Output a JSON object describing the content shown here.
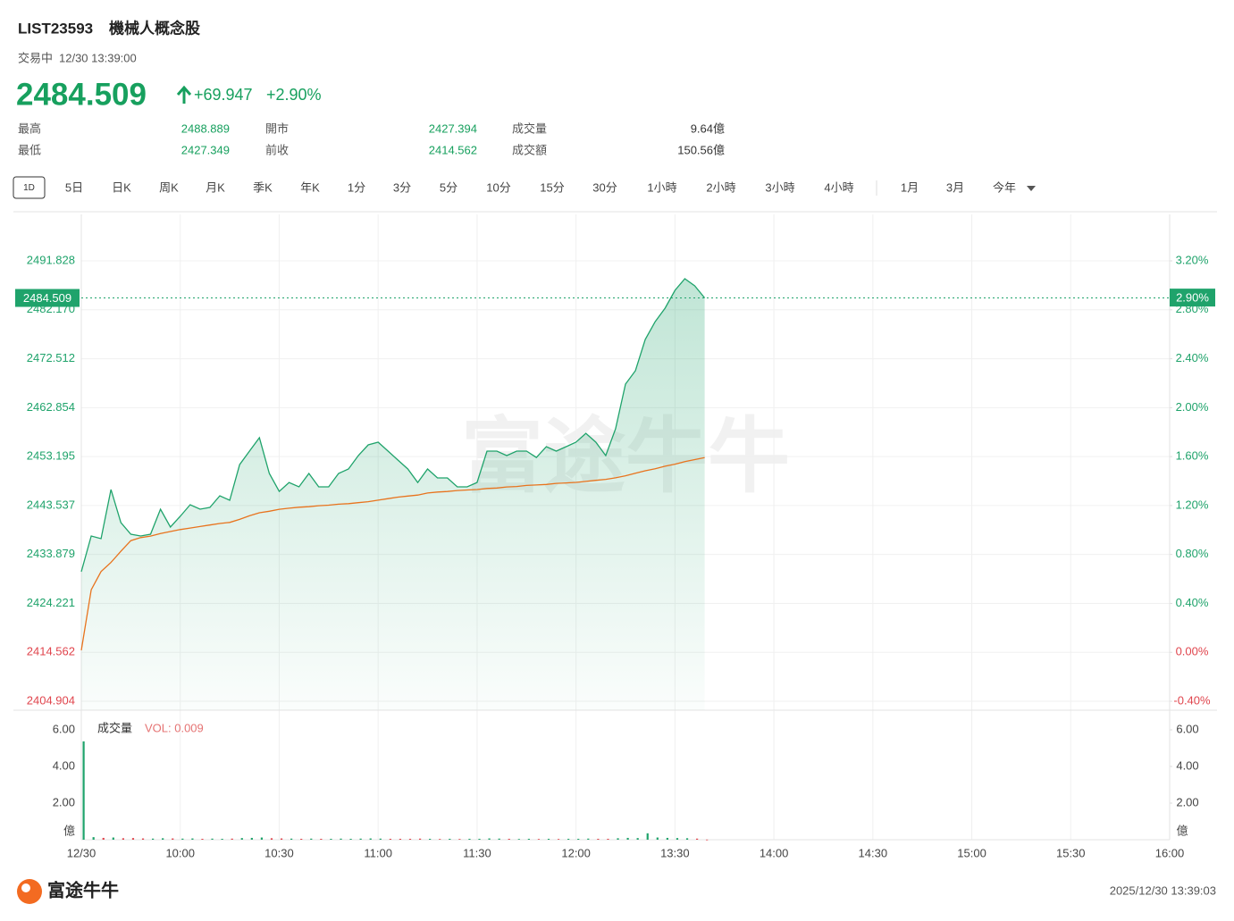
{
  "header": {
    "symbol": "LIST23593",
    "name": "機械人概念股",
    "status": "交易中",
    "time": "12/30 13:39:00",
    "price": "2484.509",
    "change": "+69.947",
    "change_pct": "+2.90%"
  },
  "stats": [
    [
      {
        "label": "最高",
        "value": "2488.889"
      },
      {
        "label": "開市",
        "value": "2427.394"
      },
      {
        "label": "成交量",
        "value": "9.64億"
      }
    ],
    [
      {
        "label": "最低",
        "value": "2427.349"
      },
      {
        "label": "前收",
        "value": "2414.562"
      },
      {
        "label": "成交額",
        "value": "150.56億"
      }
    ]
  ],
  "tabs": {
    "icon": "1D",
    "items": [
      "5日",
      "日K",
      "周K",
      "月K",
      "季K",
      "年K",
      "1分",
      "3分",
      "5分",
      "10分",
      "15分",
      "30分",
      "1小時",
      "2小時",
      "3小時",
      "4小時"
    ],
    "more": [
      "1月",
      "3月",
      "今年"
    ]
  },
  "chart_data": [
    {
      "type": "line",
      "watermark": "富途牛牛",
      "grid": true,
      "x": [
        "09:30",
        "09:33",
        "09:36",
        "09:39",
        "09:42",
        "09:45",
        "09:48",
        "09:51",
        "09:54",
        "09:57",
        "10:00",
        "10:03",
        "10:06",
        "10:09",
        "10:12",
        "10:15",
        "10:18",
        "10:21",
        "10:24",
        "10:27",
        "10:30",
        "10:33",
        "10:36",
        "10:39",
        "10:42",
        "10:45",
        "10:48",
        "10:51",
        "10:54",
        "10:57",
        "11:00",
        "11:03",
        "11:06",
        "11:09",
        "11:12",
        "11:15",
        "11:18",
        "11:21",
        "11:24",
        "11:27",
        "11:30",
        "11:33",
        "11:36",
        "11:39",
        "11:42",
        "11:45",
        "11:48",
        "11:51",
        "11:54",
        "11:57",
        "12:00",
        "13:03",
        "13:06",
        "13:09",
        "13:12",
        "13:15",
        "13:18",
        "13:21",
        "13:24",
        "13:27",
        "13:30",
        "13:33",
        "13:36",
        "13:39"
      ],
      "series": [
        {
          "color": "#1fa36b",
          "values": [
            2430.47,
            2437.52,
            2436.99,
            2446.69,
            2440.16,
            2437.87,
            2437.52,
            2437.87,
            2442.81,
            2439.28,
            2441.4,
            2443.69,
            2442.81,
            2443.16,
            2445.45,
            2444.57,
            2451.62,
            2454.27,
            2456.92,
            2449.86,
            2446.33,
            2448.09,
            2447.22,
            2449.86,
            2447.22,
            2447.22,
            2449.86,
            2450.74,
            2453.39,
            2455.5,
            2456.03,
            2454.27,
            2452.51,
            2450.74,
            2448.09,
            2450.74,
            2448.98,
            2448.98,
            2447.22,
            2447.22,
            2448.09,
            2454.27,
            2454.27,
            2453.39,
            2454.27,
            2454.27,
            2453.03,
            2455.15,
            2454.27,
            2455.15,
            2456.03,
            2457.79,
            2456.03,
            2453.39,
            2458.68,
            2467.49,
            2470.14,
            2476.31,
            2479.83,
            2482.48,
            2486.01,
            2488.3,
            2486.89,
            2484.509
          ]
        },
        {
          "color": "#e8731d",
          "values": [
            2414.95,
            2426.9,
            2430.5,
            2432.3,
            2434.5,
            2436.6,
            2437.2,
            2437.5,
            2438.0,
            2438.4,
            2438.8,
            2439.1,
            2439.4,
            2439.7,
            2440.0,
            2440.2,
            2440.8,
            2441.5,
            2442.1,
            2442.4,
            2442.8,
            2443.0,
            2443.2,
            2443.3,
            2443.5,
            2443.6,
            2443.8,
            2443.9,
            2444.1,
            2444.3,
            2444.6,
            2444.9,
            2445.2,
            2445.4,
            2445.6,
            2446.0,
            2446.2,
            2446.3,
            2446.5,
            2446.6,
            2446.7,
            2446.9,
            2447.0,
            2447.2,
            2447.3,
            2447.5,
            2447.6,
            2447.7,
            2447.9,
            2448.0,
            2448.1,
            2448.3,
            2448.5,
            2448.7,
            2449.0,
            2449.4,
            2449.9,
            2450.4,
            2450.8,
            2451.3,
            2451.7,
            2452.2,
            2452.6,
            2453.0
          ]
        }
      ],
      "xlim": [
        "09:30",
        "16:00"
      ],
      "x_breaks": [
        [
          "12:00",
          "13:00"
        ]
      ],
      "xticks": [
        {
          "value": "09:30",
          "label": "12/30"
        },
        "10:00",
        "10:30",
        "11:00",
        "11:30",
        "12:00",
        "13:30",
        "14:00",
        "14:30",
        "15:00",
        "15:30",
        "16:00"
      ],
      "ylim": [
        2403.14,
        2501.0
      ],
      "yticks": [
        2404.904,
        2414.562,
        2424.221,
        2433.879,
        2443.537,
        2453.195,
        2462.854,
        2472.512,
        {
          "value": 2482.17,
          "label": "2482.170"
        },
        2491.828
      ],
      "y2lim": [
        -0.473,
        3.58
      ],
      "y2ticks": [
        {
          "value": -0.4,
          "label": "-0.40%"
        },
        {
          "value": 0,
          "label": "0.00%"
        },
        {
          "value": 0.4,
          "label": "0.40%"
        },
        {
          "value": 0.8,
          "label": "0.80%"
        },
        {
          "value": 1.2,
          "label": "1.20%"
        },
        {
          "value": 1.6,
          "label": "1.60%"
        },
        {
          "value": 2,
          "label": "2.00%"
        },
        {
          "value": 2.4,
          "label": "2.40%"
        },
        {
          "value": 2.8,
          "label": "2.80%"
        },
        {
          "value": 3.2,
          "label": "3.20%"
        }
      ],
      "last_tag": 2484.509,
      "last_tag_pct": {
        "value": 2.9,
        "label": "2.90%"
      }
    },
    {
      "type": "bar",
      "title": "成交量",
      "annotation": "VOL: 0.009",
      "unit": "億",
      "up_color": "#1fa36b",
      "down_color": "#e0454d",
      "values": [
        5.37,
        0.14,
        0.1,
        0.12,
        0.08,
        0.09,
        0.07,
        0.06,
        0.08,
        0.07,
        0.06,
        0.07,
        0.05,
        0.06,
        0.05,
        0.06,
        0.09,
        0.1,
        0.12,
        0.08,
        0.07,
        0.06,
        0.05,
        0.06,
        0.05,
        0.05,
        0.06,
        0.05,
        0.06,
        0.07,
        0.06,
        0.05,
        0.05,
        0.05,
        0.06,
        0.05,
        0.04,
        0.05,
        0.04,
        0.05,
        0.05,
        0.07,
        0.06,
        0.05,
        0.04,
        0.05,
        0.04,
        0.05,
        0.04,
        0.05,
        0.05,
        0.06,
        0.05,
        0.05,
        0.08,
        0.1,
        0.09,
        0.35,
        0.12,
        0.1,
        0.09,
        0.08,
        0.06,
        0.009
      ],
      "ylim": [
        0,
        6.83
      ],
      "yticks": [
        {
          "value": 2,
          "label": "2.00"
        },
        {
          "value": 4,
          "label": "4.00"
        },
        {
          "value": 6,
          "label": "6.00"
        }
      ]
    }
  ],
  "footer": {
    "brand": "富途牛牛",
    "timestamp": "2025/12/30 13:39:03"
  }
}
